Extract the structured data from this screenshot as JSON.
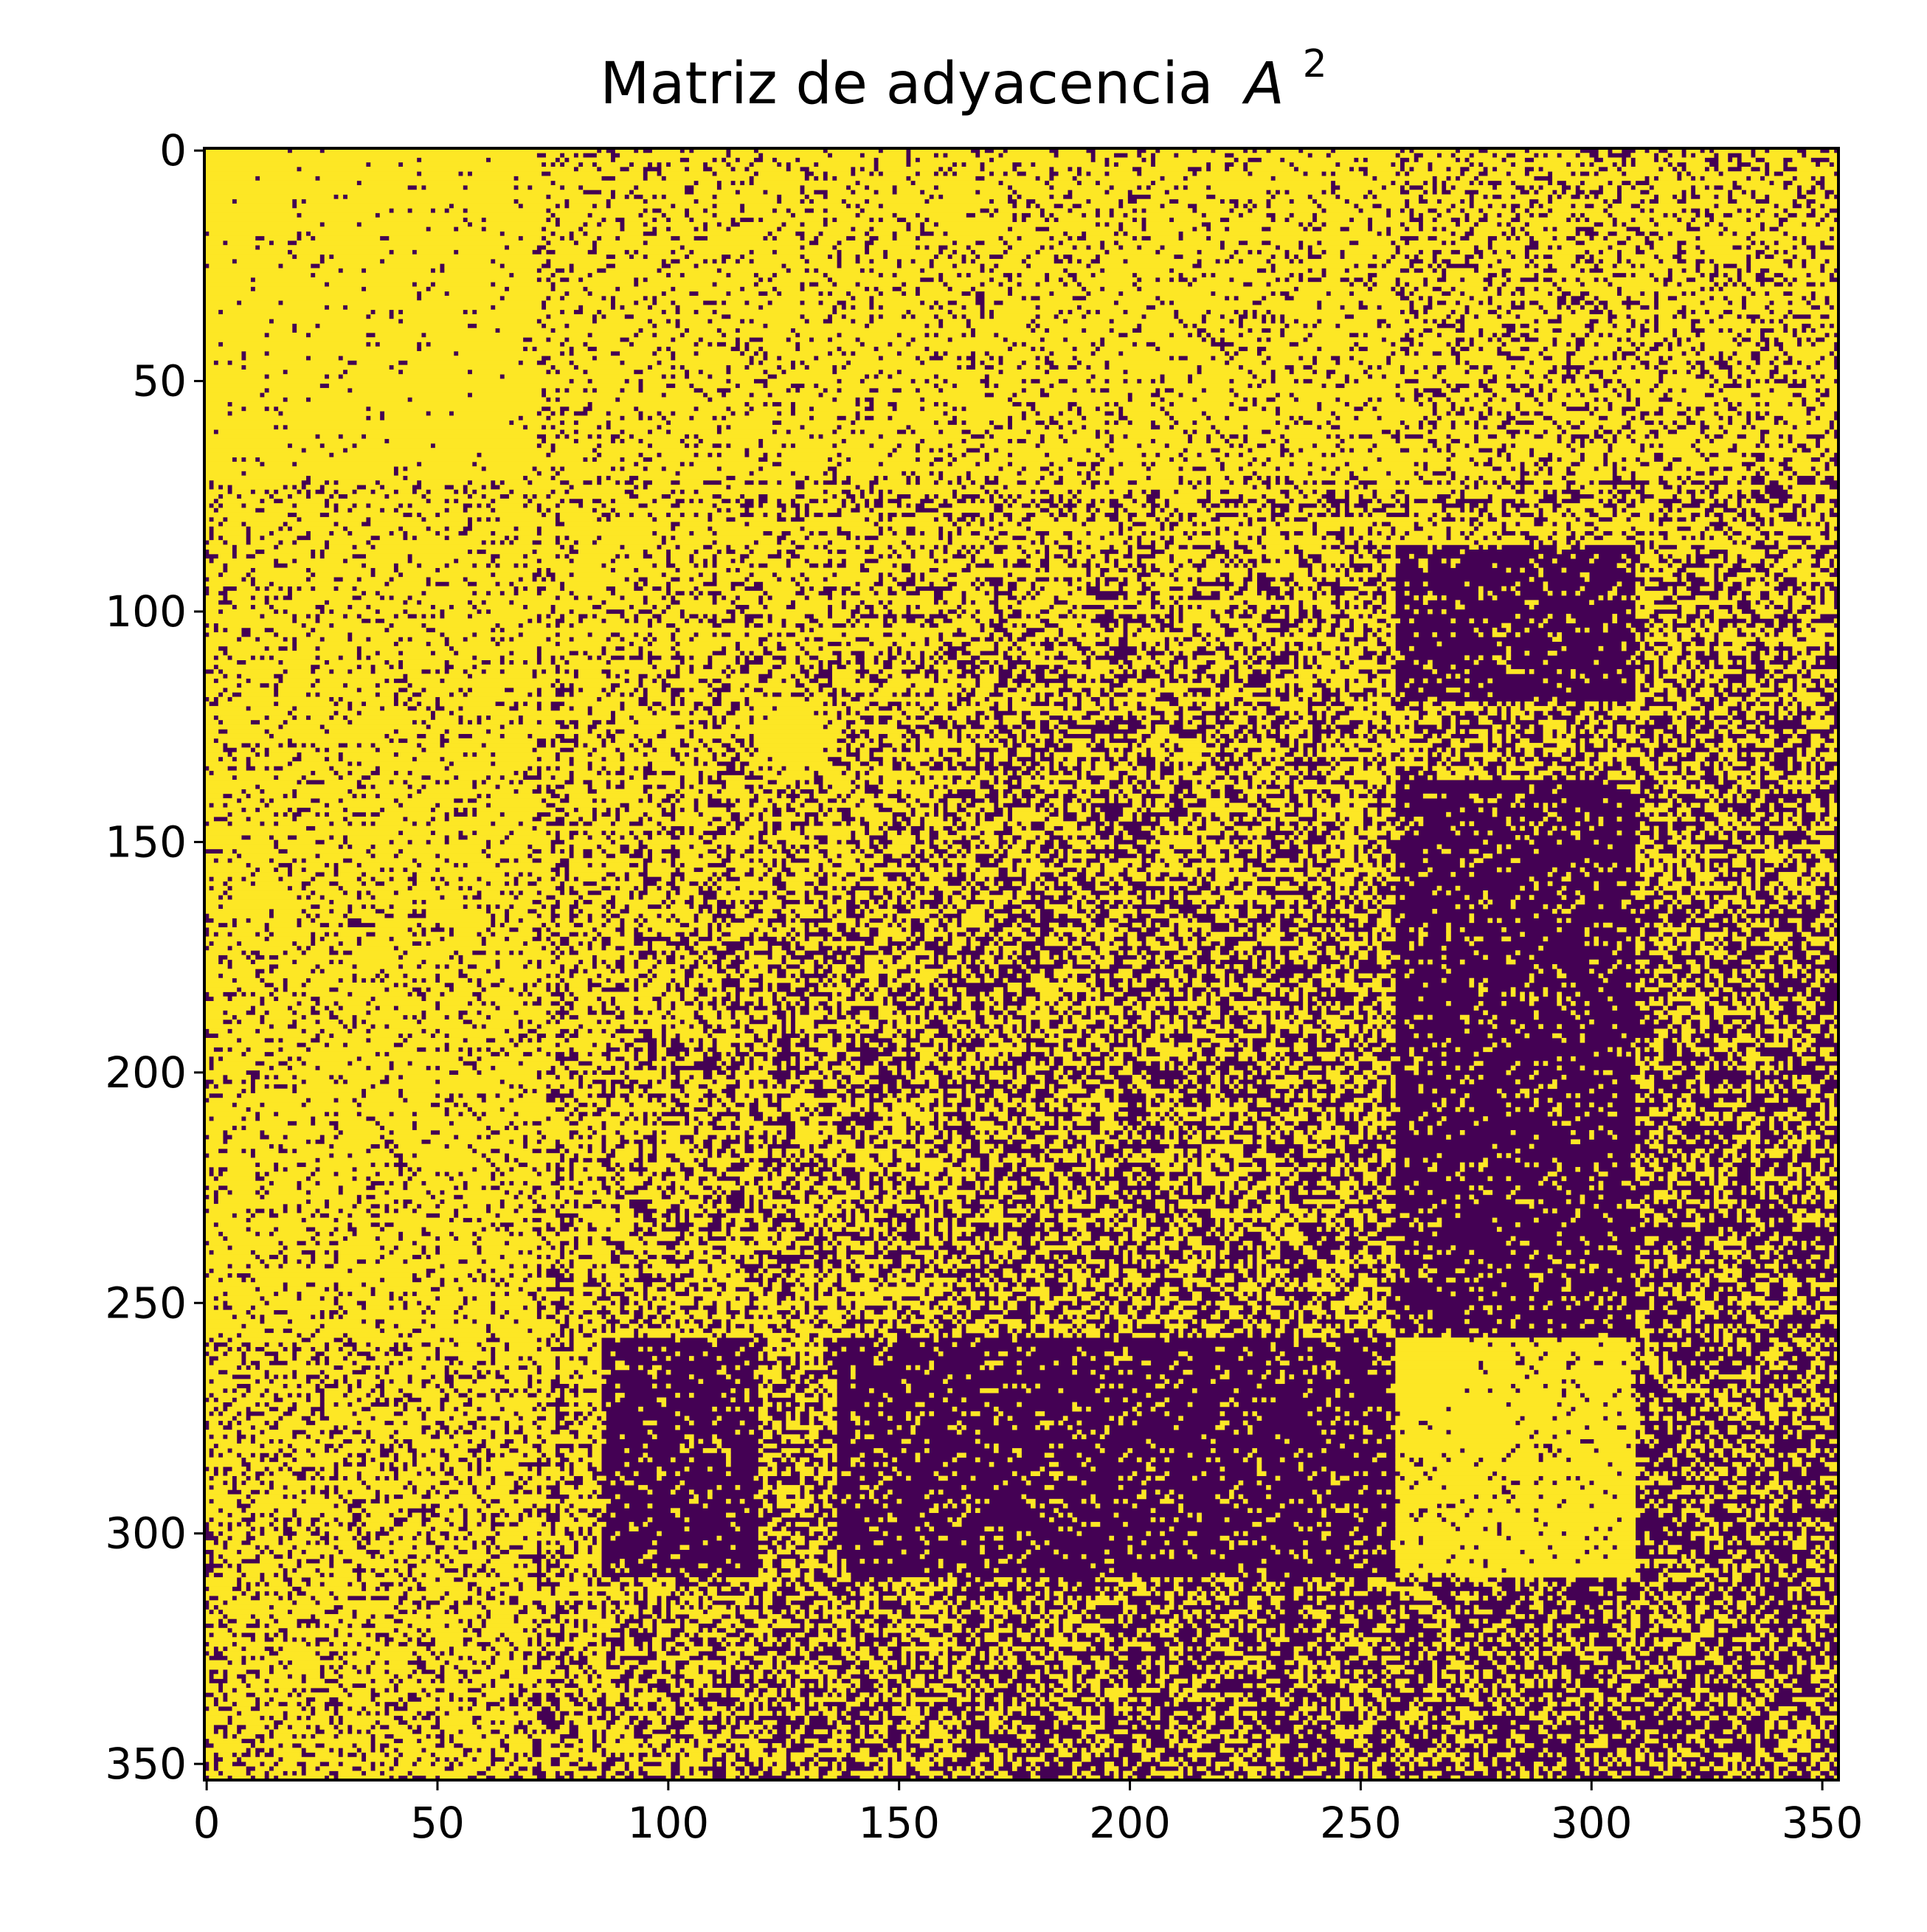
{
  "chart_data": {
    "type": "heatmap",
    "title": "Matriz de adyacencia",
    "title_superscript_var": "A",
    "title_superscript_exp": "2",
    "n": 354,
    "xlim": [
      0,
      354
    ],
    "ylim": [
      0,
      354
    ],
    "y_inverted": true,
    "x_ticks": [
      0,
      50,
      100,
      150,
      200,
      250,
      300,
      350
    ],
    "x_tick_labels": [
      "0",
      "50",
      "100",
      "150",
      "200",
      "250",
      "300",
      "350"
    ],
    "y_ticks": [
      0,
      50,
      100,
      150,
      200,
      250,
      300,
      350
    ],
    "y_tick_labels": [
      "0",
      "50",
      "100",
      "150",
      "200",
      "250",
      "300",
      "350"
    ],
    "colormap": "viridis (binary)",
    "value_colors": {
      "0": "#440154",
      "1": "#fde725"
    },
    "values_description": "binary matrix: 1 = path of length 2 exists, 0 = none",
    "block_structure_approx": {
      "dense_blocks": [
        [
          0,
          72
        ],
        [
          120,
          137
        ],
        [
          258,
          283
        ],
        [
          283,
          310
        ]
      ],
      "sparse_blocks": [
        [
          258,
          354
        ]
      ]
    }
  }
}
